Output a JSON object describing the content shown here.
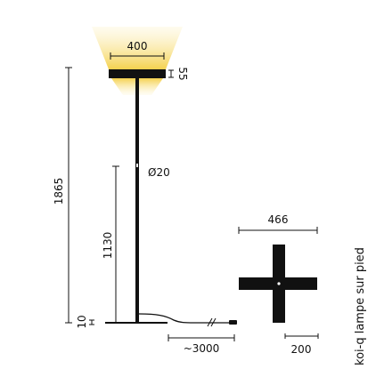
{
  "title": "koi-q lampe sur pied",
  "dimensions": {
    "head_diameter": "400",
    "head_height": "55",
    "total_height": "1865",
    "switch_height": "1130",
    "pole_diameter": "Ø20",
    "base_height": "10",
    "cable_length": "~3000",
    "base_span": "466",
    "base_arm_width": "200"
  },
  "colors": {
    "line": "#111111",
    "glow_core": "#f4d04a",
    "glow_edge": "#fdf2c8"
  }
}
